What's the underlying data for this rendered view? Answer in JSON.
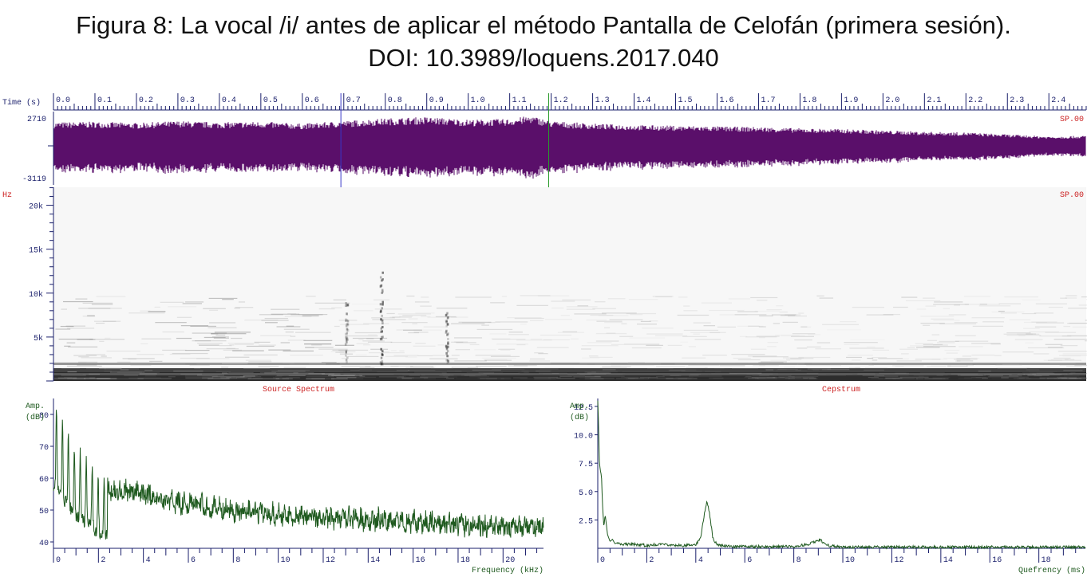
{
  "figure": {
    "title_line1": "Figura 8: La vocal /i/ antes de aplicar el método Pantalla de Celofán (primera sesión).",
    "title_line2": "DOI: 10.3989/loquens.2017.040"
  },
  "colors": {
    "axis": "#1a1f6b",
    "waveform": "#5a0f6a",
    "spectrum_line": "#1f5a1f",
    "label_red": "#cc2222",
    "cursor_left": "#3838c8",
    "cursor_right": "#2a9a2a",
    "spectrogram_bg": "#f7f7f7"
  },
  "chart_data": [
    {
      "type": "line",
      "name": "waveform",
      "xlabel": "Time (s)",
      "x_ticks": [
        "0.0",
        "0.1",
        "0.2",
        "0.3",
        "0.4",
        "0.5",
        "0.6",
        "0.7",
        "0.8",
        "0.9",
        "1.0",
        "1.1",
        "1.2",
        "1.3",
        "1.4",
        "1.5",
        "1.6",
        "1.7",
        "1.8",
        "1.9",
        "2.0",
        "2.1",
        "2.2",
        "2.3",
        "2.4"
      ],
      "xlim": [
        0,
        2.49
      ],
      "ylim": [
        -3119,
        2710
      ],
      "y_max_label": "2710",
      "y_min_label": "-3119",
      "channel_label": "SP.00",
      "cursors": [
        0.693,
        1.194
      ],
      "envelope_amplitude_fraction": {
        "t": [
          0.0,
          0.1,
          0.2,
          0.3,
          0.4,
          0.5,
          0.6,
          0.7,
          0.8,
          0.9,
          1.0,
          1.1,
          1.15,
          1.2,
          1.3,
          1.4,
          1.5,
          1.6,
          1.7,
          1.8,
          1.9,
          2.0,
          2.1,
          2.2,
          2.3,
          2.4,
          2.49
        ],
        "a": [
          0.7,
          0.72,
          0.68,
          0.74,
          0.7,
          0.72,
          0.66,
          0.74,
          0.82,
          0.86,
          0.78,
          0.8,
          0.9,
          0.74,
          0.66,
          0.62,
          0.6,
          0.58,
          0.56,
          0.52,
          0.5,
          0.46,
          0.42,
          0.4,
          0.34,
          0.28,
          0.3
        ]
      }
    },
    {
      "type": "heatmap",
      "name": "spectrogram",
      "ylabel": "Hz",
      "y_ticks": [
        "20k",
        "15k",
        "10k",
        "5k"
      ],
      "y_tick_values": [
        20000,
        15000,
        10000,
        5000
      ],
      "ylim": [
        0,
        22050
      ],
      "xlim": [
        0,
        2.49
      ],
      "channel_label": "SP.00",
      "cursors": [
        0.693,
        1.194
      ],
      "left_caption": "Source Spectrum",
      "right_caption": "Cepstrum"
    },
    {
      "type": "line",
      "name": "source-spectrum",
      "xlabel": "Frequency (kHz)",
      "ylabel": "Amp. (dB)",
      "ylabel_line1": "Amp.",
      "ylabel_line2": "(dB)",
      "x_ticks": [
        "0",
        "2",
        "4",
        "6",
        "8",
        "10",
        "12",
        "14",
        "16",
        "18",
        "20"
      ],
      "x_tick_values": [
        0,
        2,
        4,
        6,
        8,
        10,
        12,
        14,
        16,
        18,
        20
      ],
      "y_ticks": [
        "80",
        "70",
        "60",
        "50",
        "40"
      ],
      "y_tick_values": [
        80,
        70,
        60,
        50,
        40
      ],
      "xlim": [
        0,
        21.8
      ],
      "ylim": [
        38,
        85
      ],
      "envelope_kHz": [
        0,
        0.5,
        1,
        1.5,
        2,
        2.5,
        3,
        4,
        5,
        6,
        7,
        8,
        9,
        10,
        11,
        12,
        13,
        14,
        15,
        16,
        17,
        18,
        19,
        20,
        21,
        21.6
      ],
      "envelope_dB": [
        72,
        67,
        62,
        60,
        57,
        56,
        56,
        55,
        53,
        52,
        51,
        50,
        49,
        48.5,
        48,
        47.5,
        47.5,
        47,
        47,
        46.5,
        46,
        45.5,
        45,
        44.5,
        44.5,
        45
      ]
    },
    {
      "type": "line",
      "name": "cepstrum",
      "xlabel": "Quefrency (ms)",
      "ylabel": "Amp. (dB)",
      "ylabel_line1": "Amp.",
      "ylabel_line2": "(dB)",
      "x_ticks": [
        "0",
        "2",
        "4",
        "6",
        "8",
        "10",
        "12",
        "14",
        "16",
        "18"
      ],
      "x_tick_values": [
        0,
        2,
        4,
        6,
        8,
        10,
        12,
        14,
        16,
        18
      ],
      "y_ticks": [
        "12.5",
        "10.0",
        "7.5",
        "5.0",
        "2.5"
      ],
      "y_tick_values": [
        12.5,
        10.0,
        7.5,
        5.0,
        2.5
      ],
      "xlim": [
        0,
        19.9
      ],
      "ylim": [
        0,
        13.2
      ],
      "x": [
        0,
        0.03,
        0.06,
        0.1,
        0.15,
        0.2,
        0.25,
        0.3,
        0.4,
        0.5,
        0.6,
        0.7,
        0.8,
        1.0,
        1.5,
        2,
        2.5,
        3,
        3.5,
        4,
        4.2,
        4.35,
        4.45,
        4.55,
        4.7,
        4.9,
        5.5,
        6,
        7,
        8,
        8.6,
        8.9,
        9.05,
        9.2,
        9.4,
        10,
        12,
        14,
        16,
        18,
        19.9
      ],
      "y": [
        13.0,
        11.0,
        7.8,
        6.9,
        6.4,
        3.6,
        1.8,
        3.0,
        1.2,
        0.6,
        0.8,
        0.4,
        0.5,
        0.3,
        0.3,
        0.2,
        0.3,
        0.2,
        0.2,
        0.3,
        0.8,
        3.0,
        4.1,
        3.2,
        0.8,
        0.2,
        0.1,
        0.1,
        0.1,
        0.1,
        0.3,
        0.6,
        0.7,
        0.5,
        0.2,
        0.05,
        0.05,
        0.05,
        0.05,
        0.05,
        0.05
      ]
    }
  ]
}
